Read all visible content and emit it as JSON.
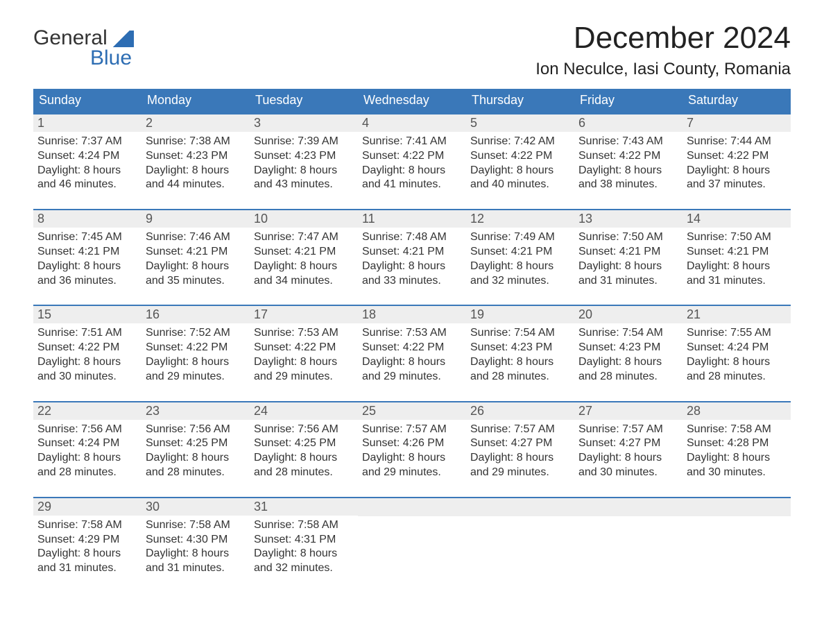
{
  "logo": {
    "line1": "General",
    "line2": "Blue"
  },
  "title": "December 2024",
  "location": "Ion Neculce, Iasi County, Romania",
  "colors": {
    "header_bg": "#3a78b9",
    "header_text": "#ffffff",
    "daybar_bg": "#eeeeee",
    "daybar_text": "#555555",
    "body_text": "#333333",
    "logo_blue": "#2d6db3",
    "page_bg": "#ffffff",
    "week_border": "#3a78b9"
  },
  "fonts": {
    "title_pt": 44,
    "location_pt": 24,
    "day_header_pt": 18,
    "day_num_pt": 18,
    "body_pt": 16,
    "logo_pt": 30
  },
  "day_names": [
    "Sunday",
    "Monday",
    "Tuesday",
    "Wednesday",
    "Thursday",
    "Friday",
    "Saturday"
  ],
  "weeks": [
    [
      {
        "n": "1",
        "sr": "7:37 AM",
        "ss": "4:24 PM",
        "dh": "8",
        "dm": "46"
      },
      {
        "n": "2",
        "sr": "7:38 AM",
        "ss": "4:23 PM",
        "dh": "8",
        "dm": "44"
      },
      {
        "n": "3",
        "sr": "7:39 AM",
        "ss": "4:23 PM",
        "dh": "8",
        "dm": "43"
      },
      {
        "n": "4",
        "sr": "7:41 AM",
        "ss": "4:22 PM",
        "dh": "8",
        "dm": "41"
      },
      {
        "n": "5",
        "sr": "7:42 AM",
        "ss": "4:22 PM",
        "dh": "8",
        "dm": "40"
      },
      {
        "n": "6",
        "sr": "7:43 AM",
        "ss": "4:22 PM",
        "dh": "8",
        "dm": "38"
      },
      {
        "n": "7",
        "sr": "7:44 AM",
        "ss": "4:22 PM",
        "dh": "8",
        "dm": "37"
      }
    ],
    [
      {
        "n": "8",
        "sr": "7:45 AM",
        "ss": "4:21 PM",
        "dh": "8",
        "dm": "36"
      },
      {
        "n": "9",
        "sr": "7:46 AM",
        "ss": "4:21 PM",
        "dh": "8",
        "dm": "35"
      },
      {
        "n": "10",
        "sr": "7:47 AM",
        "ss": "4:21 PM",
        "dh": "8",
        "dm": "34"
      },
      {
        "n": "11",
        "sr": "7:48 AM",
        "ss": "4:21 PM",
        "dh": "8",
        "dm": "33"
      },
      {
        "n": "12",
        "sr": "7:49 AM",
        "ss": "4:21 PM",
        "dh": "8",
        "dm": "32"
      },
      {
        "n": "13",
        "sr": "7:50 AM",
        "ss": "4:21 PM",
        "dh": "8",
        "dm": "31"
      },
      {
        "n": "14",
        "sr": "7:50 AM",
        "ss": "4:21 PM",
        "dh": "8",
        "dm": "31"
      }
    ],
    [
      {
        "n": "15",
        "sr": "7:51 AM",
        "ss": "4:22 PM",
        "dh": "8",
        "dm": "30"
      },
      {
        "n": "16",
        "sr": "7:52 AM",
        "ss": "4:22 PM",
        "dh": "8",
        "dm": "29"
      },
      {
        "n": "17",
        "sr": "7:53 AM",
        "ss": "4:22 PM",
        "dh": "8",
        "dm": "29"
      },
      {
        "n": "18",
        "sr": "7:53 AM",
        "ss": "4:22 PM",
        "dh": "8",
        "dm": "29"
      },
      {
        "n": "19",
        "sr": "7:54 AM",
        "ss": "4:23 PM",
        "dh": "8",
        "dm": "28"
      },
      {
        "n": "20",
        "sr": "7:54 AM",
        "ss": "4:23 PM",
        "dh": "8",
        "dm": "28"
      },
      {
        "n": "21",
        "sr": "7:55 AM",
        "ss": "4:24 PM",
        "dh": "8",
        "dm": "28"
      }
    ],
    [
      {
        "n": "22",
        "sr": "7:56 AM",
        "ss": "4:24 PM",
        "dh": "8",
        "dm": "28"
      },
      {
        "n": "23",
        "sr": "7:56 AM",
        "ss": "4:25 PM",
        "dh": "8",
        "dm": "28"
      },
      {
        "n": "24",
        "sr": "7:56 AM",
        "ss": "4:25 PM",
        "dh": "8",
        "dm": "28"
      },
      {
        "n": "25",
        "sr": "7:57 AM",
        "ss": "4:26 PM",
        "dh": "8",
        "dm": "29"
      },
      {
        "n": "26",
        "sr": "7:57 AM",
        "ss": "4:27 PM",
        "dh": "8",
        "dm": "29"
      },
      {
        "n": "27",
        "sr": "7:57 AM",
        "ss": "4:27 PM",
        "dh": "8",
        "dm": "30"
      },
      {
        "n": "28",
        "sr": "7:58 AM",
        "ss": "4:28 PM",
        "dh": "8",
        "dm": "30"
      }
    ],
    [
      {
        "n": "29",
        "sr": "7:58 AM",
        "ss": "4:29 PM",
        "dh": "8",
        "dm": "31"
      },
      {
        "n": "30",
        "sr": "7:58 AM",
        "ss": "4:30 PM",
        "dh": "8",
        "dm": "31"
      },
      {
        "n": "31",
        "sr": "7:58 AM",
        "ss": "4:31 PM",
        "dh": "8",
        "dm": "32"
      },
      null,
      null,
      null,
      null
    ]
  ],
  "labels": {
    "sunrise_prefix": "Sunrise: ",
    "sunset_prefix": "Sunset: ",
    "daylight_prefix": "Daylight: ",
    "hours_word": " hours",
    "and_word": "and ",
    "minutes_word": " minutes."
  }
}
